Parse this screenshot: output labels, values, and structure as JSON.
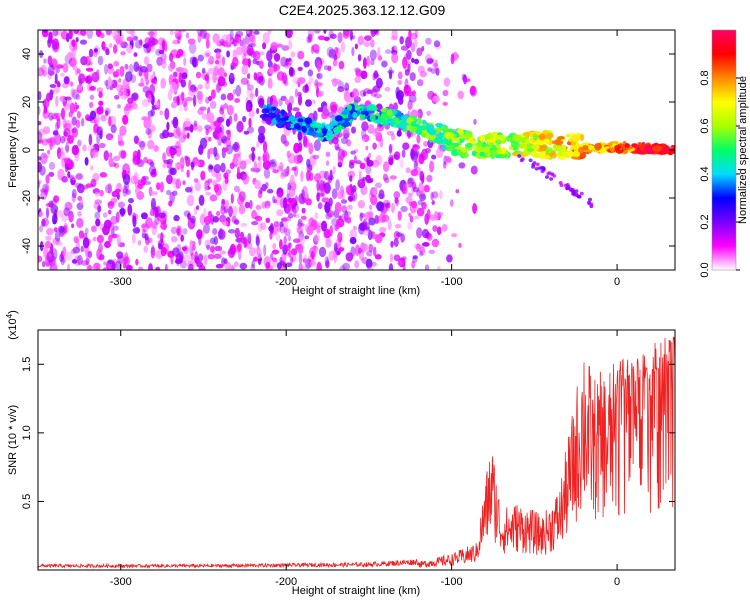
{
  "title": "C2E4.2025.363.12.12.G09",
  "chart_data": [
    {
      "type": "heatmap",
      "name": "spectrogram",
      "xlabel": "Height of straight line (km)",
      "ylabel": "Frequency (Hz)",
      "xlim": [
        -350,
        35
      ],
      "ylim": [
        -50,
        50
      ],
      "xticks": [
        -300,
        -200,
        -100,
        0
      ],
      "yticks": [
        -40,
        -20,
        0,
        20,
        40
      ],
      "xtick_labels": [
        "-300",
        "-200",
        "-100",
        "0"
      ],
      "ytick_labels": [
        "-40",
        "-20",
        "0",
        "20",
        "40"
      ],
      "signal_trace": [
        {
          "x": -215,
          "y": 16
        },
        {
          "x": -175,
          "y": 7
        },
        {
          "x": -160,
          "y": 16
        },
        {
          "x": -140,
          "y": 14
        },
        {
          "x": -120,
          "y": 10
        },
        {
          "x": -100,
          "y": 3
        },
        {
          "x": -80,
          "y": 2
        },
        {
          "x": -60,
          "y": 3
        },
        {
          "x": -40,
          "y": 2
        },
        {
          "x": -20,
          "y": 1
        },
        {
          "x": 0,
          "y": 1
        },
        {
          "x": 35,
          "y": 0
        }
      ],
      "colorbar": {
        "label": "Normalized spectral amplitude",
        "range": [
          0,
          1
        ],
        "ticks": [
          0.0,
          0.2,
          0.4,
          0.6,
          0.8
        ],
        "tick_labels": [
          "0.0",
          "0.2",
          "0.4",
          "0.6",
          "0.8"
        ],
        "colors": [
          "#ffffff",
          "#ff00ff",
          "#7700ff",
          "#0000ff",
          "#00ddff",
          "#00ff66",
          "#aaff00",
          "#ffff00",
          "#ff8800",
          "#ff0000",
          "#ff0066"
        ]
      }
    },
    {
      "type": "line",
      "name": "snr",
      "xlabel": "Height of straight line (km)",
      "ylabel": "SNR (10 * v/v)",
      "scale_label": "(x10",
      "scale_exp": "4",
      "scale_close": ")",
      "xlim": [
        -350,
        35
      ],
      "ylim": [
        0,
        1.75
      ],
      "xticks": [
        -300,
        -200,
        -100,
        0
      ],
      "yticks": [
        0.5,
        1.0,
        1.5
      ],
      "xtick_labels": [
        "-300",
        "-200",
        "-100",
        "0"
      ],
      "ytick_labels": [
        "0.5",
        "1.0",
        "1.5"
      ],
      "color": "#ee2222",
      "envelope": [
        {
          "x": -350,
          "y": 0.03
        },
        {
          "x": -250,
          "y": 0.03
        },
        {
          "x": -150,
          "y": 0.04
        },
        {
          "x": -120,
          "y": 0.06
        },
        {
          "x": -100,
          "y": 0.12
        },
        {
          "x": -85,
          "y": 0.2
        },
        {
          "x": -76,
          "y": 0.97
        },
        {
          "x": -70,
          "y": 0.45
        },
        {
          "x": -60,
          "y": 0.5
        },
        {
          "x": -45,
          "y": 0.4
        },
        {
          "x": -35,
          "y": 0.6
        },
        {
          "x": -25,
          "y": 1.3
        },
        {
          "x": -20,
          "y": 1.75
        },
        {
          "x": -15,
          "y": 1.4
        },
        {
          "x": -5,
          "y": 1.5
        },
        {
          "x": 5,
          "y": 1.55
        },
        {
          "x": 15,
          "y": 1.6
        },
        {
          "x": 25,
          "y": 1.68
        },
        {
          "x": 35,
          "y": 1.72
        }
      ]
    }
  ]
}
